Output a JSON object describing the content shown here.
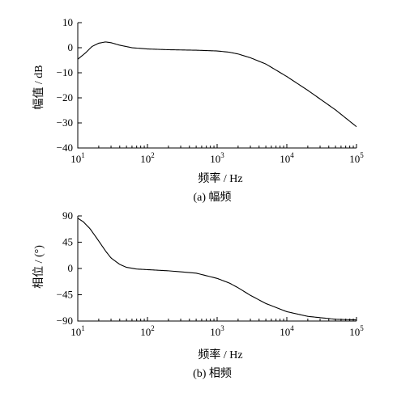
{
  "chart_data": [
    {
      "type": "line",
      "caption": "(a) 幅频",
      "xlabel": "频率 / Hz",
      "ylabel": "幅值 / dB",
      "xscale": "log",
      "xlim": [
        10,
        100000
      ],
      "ylim": [
        -40,
        10
      ],
      "xticks": [
        {
          "base": "10",
          "exp": "1"
        },
        {
          "base": "10",
          "exp": "2"
        },
        {
          "base": "10",
          "exp": "3"
        },
        {
          "base": "10",
          "exp": "4"
        },
        {
          "base": "10",
          "exp": "5"
        }
      ],
      "yticks": [
        "10",
        "0",
        "−10",
        "−20",
        "−30",
        "−40"
      ],
      "series": [
        {
          "x": [
            10,
            13,
            16,
            20,
            25,
            30,
            40,
            60,
            100,
            200,
            500,
            1000,
            1500,
            2000,
            3000,
            5000,
            10000,
            20000,
            50000,
            100000
          ],
          "values": [
            -4.6,
            -2.0,
            0.5,
            1.8,
            2.3,
            2.0,
            1.0,
            0.0,
            -0.5,
            -0.8,
            -1.0,
            -1.3,
            -1.8,
            -2.5,
            -4.0,
            -6.5,
            -11.5,
            -17.0,
            -24.8,
            -31.5
          ]
        }
      ]
    },
    {
      "type": "line",
      "caption": "(b) 相频",
      "xlabel": "频率 / Hz",
      "ylabel": "相位 / (°)",
      "xscale": "log",
      "xlim": [
        10,
        100000
      ],
      "ylim": [
        -90,
        90
      ],
      "xticks": [
        {
          "base": "10",
          "exp": "1"
        },
        {
          "base": "10",
          "exp": "2"
        },
        {
          "base": "10",
          "exp": "3"
        },
        {
          "base": "10",
          "exp": "4"
        },
        {
          "base": "10",
          "exp": "5"
        }
      ],
      "yticks": [
        "90",
        "45",
        "0",
        "−45",
        "−90"
      ],
      "series": [
        {
          "x": [
            10,
            12,
            15,
            20,
            25,
            30,
            40,
            50,
            70,
            100,
            200,
            500,
            1000,
            1500,
            2000,
            3000,
            5000,
            10000,
            20000,
            50000,
            100000
          ],
          "values": [
            86,
            80,
            68,
            47,
            30,
            18,
            7,
            2,
            -1,
            -2,
            -4,
            -8,
            -17,
            -25,
            -33,
            -46,
            -60,
            -74,
            -82,
            -87,
            -88
          ]
        }
      ]
    }
  ]
}
